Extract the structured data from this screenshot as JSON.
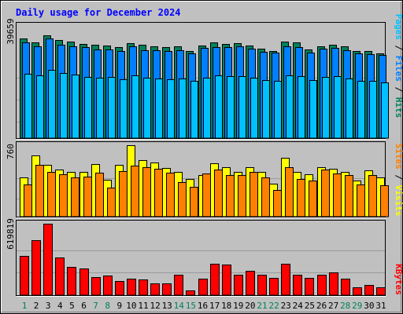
{
  "colors": {
    "background": "#c0c0c0",
    "title": "#0000ff",
    "hits": "#00805c",
    "files": "#0080ff",
    "pages": "#00c0ff",
    "visits": "#ffff00",
    "sites": "#ff8000",
    "kbytes": "#ff0000",
    "weekday_label": "#000000",
    "weekend_label": "#00805c"
  },
  "chart_data": {
    "type": "bar",
    "title": "Daily usage for December 2024",
    "categories": [
      "1",
      "2",
      "3",
      "4",
      "5",
      "6",
      "7",
      "8",
      "9",
      "10",
      "11",
      "12",
      "13",
      "14",
      "15",
      "16",
      "17",
      "18",
      "19",
      "20",
      "21",
      "22",
      "23",
      "24",
      "25",
      "26",
      "27",
      "28",
      "29",
      "30",
      "31"
    ],
    "weekend_days": [
      "1",
      "7",
      "8",
      "14",
      "15",
      "21",
      "22",
      "28",
      "29"
    ],
    "panels": [
      {
        "name": "requests",
        "ymax": 39659,
        "ymax_label": "39659",
        "legend": [
          "Pages",
          "/",
          "Files",
          "/",
          "Hits"
        ],
        "legend_colors": [
          "pages",
          "weekday_label",
          "files",
          "weekday_label",
          "hits"
        ],
        "series": [
          {
            "name": "Hits",
            "color": "hits",
            "values": [
              37200,
              35800,
              38500,
              36600,
              36000,
              35200,
              35000,
              34800,
              34200,
              35500,
              35000,
              34300,
              34000,
              34300,
              32500,
              34800,
              35800,
              35300,
              35600,
              34800,
              33500,
              32700,
              36200,
              35800,
              33300,
              34500,
              35100,
              34300,
              32600,
              32500,
              31600
            ]
          },
          {
            "name": "Files",
            "color": "files",
            "values": [
              35700,
              34500,
              37300,
              34900,
              34300,
              34000,
              33300,
              33300,
              32500,
              34300,
              33000,
              32900,
              32500,
              32900,
              31700,
              33800,
              34100,
              34100,
              34300,
              33500,
              32300,
              32000,
              34300,
              34000,
              32000,
              33500,
              33800,
              32900,
              31600,
              31400,
              31000
            ]
          },
          {
            "name": "Pages",
            "color": "pages",
            "values": [
              24000,
              23500,
              25500,
              24500,
              23700,
              23000,
              22500,
              22800,
              22000,
              23600,
              22700,
              22300,
              22000,
              22300,
              21300,
              22500,
              23600,
              23100,
              23300,
              22700,
              21800,
              21500,
              23400,
              23200,
              21800,
              22900,
              23100,
              22400,
              21500,
              21300,
              20800
            ]
          }
        ]
      },
      {
        "name": "visitors",
        "ymax": 760,
        "ymax_label": "760",
        "legend": [
          "Sites",
          "/",
          "Visits"
        ],
        "legend_colors": [
          "sites",
          "weekday_label",
          "visits"
        ],
        "series": [
          {
            "name": "Visits",
            "color": "visits",
            "values": [
              420,
              650,
              550,
              500,
              475,
              480,
              560,
              390,
              550,
              760,
              600,
              580,
              515,
              480,
              400,
              440,
              570,
              530,
              475,
              530,
              475,
              350,
              625,
              480,
              450,
              530,
              510,
              480,
              380,
              490,
              420
            ]
          },
          {
            "name": "Sites",
            "color": "sites",
            "values": [
              340,
              555,
              480,
              450,
              420,
              425,
              470,
              310,
              485,
              540,
              530,
              510,
              470,
              365,
              320,
              460,
              505,
              445,
              445,
              480,
              420,
              285,
              530,
              400,
              380,
              500,
              460,
              440,
              345,
              440,
              330
            ]
          }
        ]
      },
      {
        "name": "kbytes",
        "ymax": 619819,
        "ymax_label": "619819",
        "legend": [
          "KBytes"
        ],
        "legend_colors": [
          "kbytes"
        ],
        "series": [
          {
            "name": "KBytes",
            "color": "kbytes",
            "values": [
              340000,
              480000,
              619819,
              330000,
              245000,
              230000,
              160000,
              170000,
              120000,
              140000,
              135000,
              100000,
              100000,
              175000,
              40000,
              140000,
              270000,
              265000,
              180000,
              210000,
              180000,
              150000,
              275000,
              180000,
              150000,
              180000,
              195000,
              140000,
              70000,
              90000,
              70000
            ]
          }
        ]
      }
    ]
  }
}
